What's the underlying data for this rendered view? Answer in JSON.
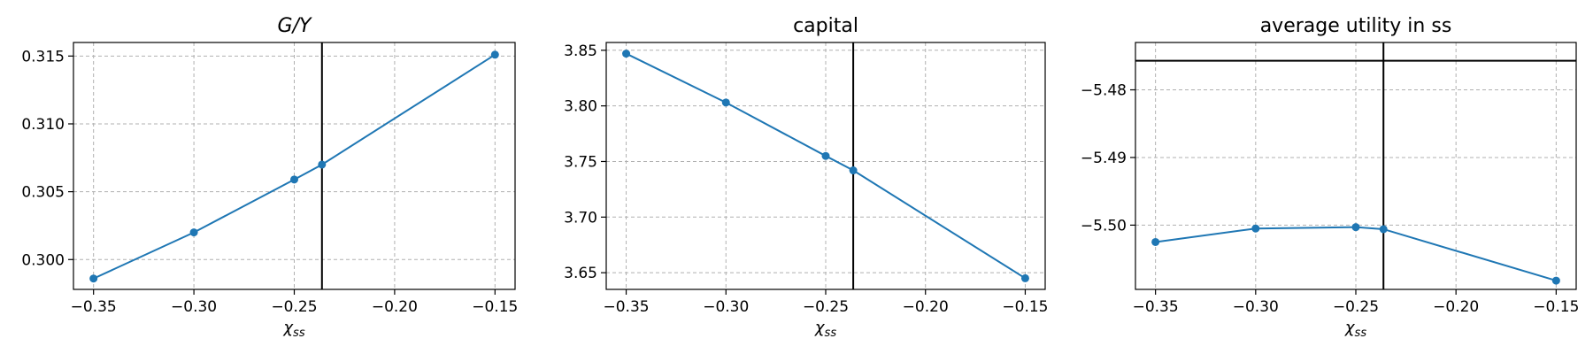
{
  "chart_data": [
    {
      "type": "line",
      "title": "G/Y",
      "title_italic": true,
      "xlabel": "χ",
      "xlabel_sub": "ss",
      "x": [
        -0.35,
        -0.3,
        -0.25,
        -0.2362,
        -0.15
      ],
      "series": [
        {
          "values": [
            0.2986,
            0.302,
            0.3059,
            0.307,
            0.3151
          ]
        }
      ],
      "xlim": [
        -0.36,
        -0.14
      ],
      "ylim": [
        0.2978,
        0.316
      ],
      "xticks": [
        -0.35,
        -0.3,
        -0.25,
        -0.2,
        -0.15
      ],
      "xtick_labels": [
        "−0.35",
        "−0.30",
        "−0.25",
        "−0.20",
        "−0.15"
      ],
      "yticks": [
        0.3,
        0.305,
        0.31,
        0.315
      ],
      "ytick_labels": [
        "0.300",
        "0.305",
        "0.310",
        "0.315"
      ],
      "vline_x": -0.2362,
      "hline_y": null,
      "grid": true
    },
    {
      "type": "line",
      "title": "capital",
      "title_italic": false,
      "xlabel": "χ",
      "xlabel_sub": "ss",
      "x": [
        -0.35,
        -0.3,
        -0.25,
        -0.2362,
        -0.15
      ],
      "series": [
        {
          "values": [
            3.847,
            3.803,
            3.755,
            3.742,
            3.645
          ]
        }
      ],
      "xlim": [
        -0.36,
        -0.14
      ],
      "ylim": [
        3.635,
        3.857
      ],
      "xticks": [
        -0.35,
        -0.3,
        -0.25,
        -0.2,
        -0.15
      ],
      "xtick_labels": [
        "−0.35",
        "−0.30",
        "−0.25",
        "−0.20",
        "−0.15"
      ],
      "yticks": [
        3.65,
        3.7,
        3.75,
        3.8,
        3.85
      ],
      "ytick_labels": [
        "3.65",
        "3.70",
        "3.75",
        "3.80",
        "3.85"
      ],
      "vline_x": -0.2362,
      "hline_y": null,
      "grid": true
    },
    {
      "type": "line",
      "title": "average utility in ss",
      "title_italic": false,
      "xlabel": "χ",
      "xlabel_sub": "ss",
      "x": [
        -0.35,
        -0.3,
        -0.25,
        -0.2362,
        -0.15
      ],
      "series": [
        {
          "values": [
            -5.5025,
            -5.5005,
            -5.5003,
            -5.5006,
            -5.5082
          ]
        }
      ],
      "xlim": [
        -0.36,
        -0.14
      ],
      "ylim": [
        -5.5095,
        -5.473
      ],
      "xticks": [
        -0.35,
        -0.3,
        -0.25,
        -0.2,
        -0.15
      ],
      "xtick_labels": [
        "−0.35",
        "−0.30",
        "−0.25",
        "−0.20",
        "−0.15"
      ],
      "yticks": [
        -5.5,
        -5.49,
        -5.48
      ],
      "ytick_labels": [
        "−5.50",
        "−5.49",
        "−5.48"
      ],
      "vline_x": -0.2362,
      "hline_y": -5.4757,
      "grid": true
    }
  ],
  "colors": {
    "series": "#1f77b4",
    "reference": "#000000",
    "grid": "#b0b0b0"
  }
}
